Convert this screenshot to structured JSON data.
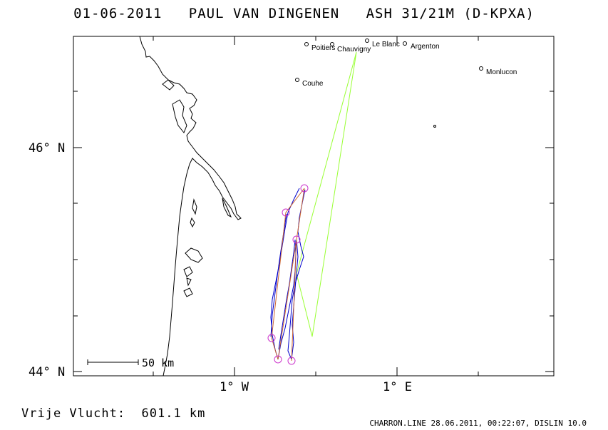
{
  "header": {
    "title": "01-06-2011   PAUL VAN DINGENEN   ASH 31/21M (D-KPXA)"
  },
  "axes": {
    "lat_labels": [
      {
        "text": "46° N",
        "value": 46
      },
      {
        "text": "44° N",
        "value": 44
      }
    ],
    "lon_labels": [
      {
        "text": "1° W",
        "value": -1
      },
      {
        "text": "1° E",
        "value": 1
      }
    ]
  },
  "scale_bar": {
    "label": "50 km"
  },
  "towns": [
    {
      "name": "Poitiers"
    },
    {
      "name": "Chauvigny"
    },
    {
      "name": "Le Blanc"
    },
    {
      "name": "Argenton"
    },
    {
      "name": "Monlucon"
    },
    {
      "name": "Couhe"
    },
    {
      "name": ""
    }
  ],
  "colors": {
    "coastline": "#000000",
    "track": "#0000cc",
    "turnpoint": "#cc33cc",
    "legs": "#cc6633",
    "optimized": "#99ff33"
  },
  "footer": {
    "distance": "Vrije Vlucht:  601.1 km",
    "credit": "CHARRON.LINE 28.06.2011, 00:22:07, DISLIN 10.0"
  }
}
